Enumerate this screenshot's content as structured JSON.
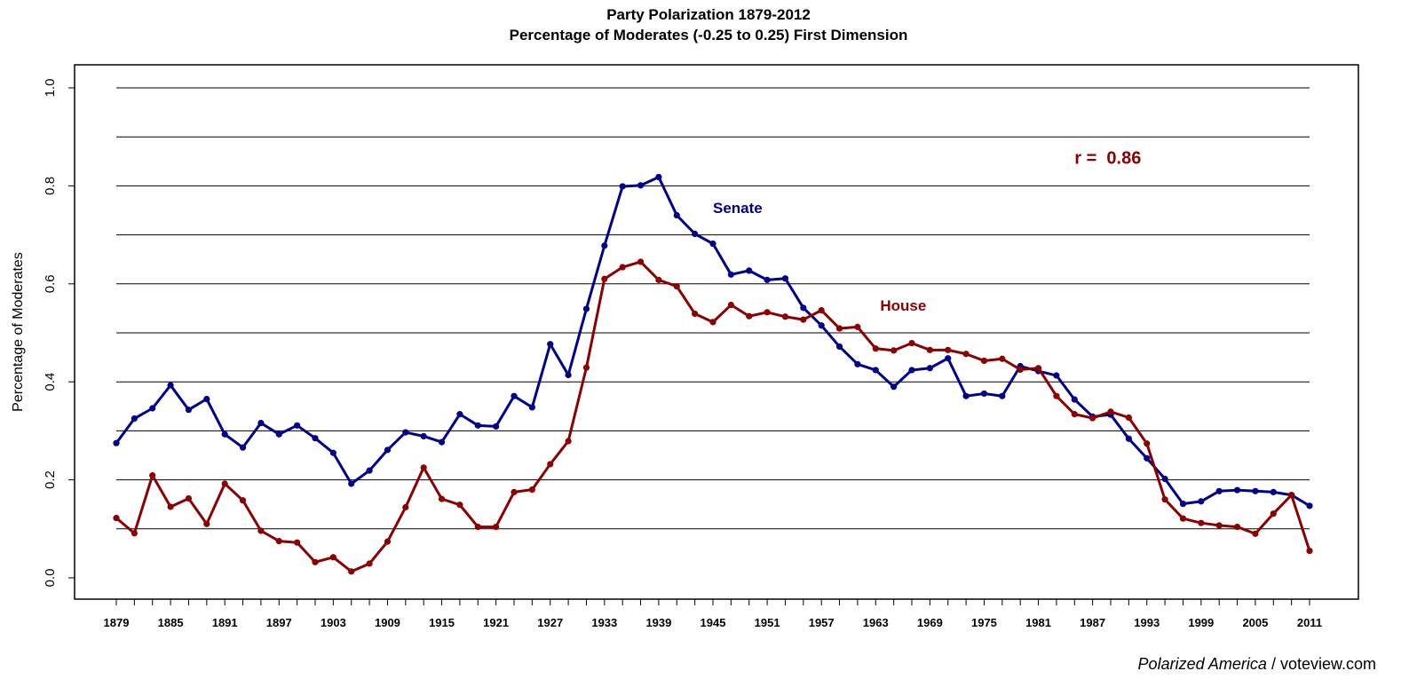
{
  "colors": {
    "senate": "#00008B",
    "house": "#8B0000",
    "grid": "#000000"
  },
  "chart_data": {
    "type": "line",
    "title": "Party Polarization 1879-2012",
    "subtitle": "Percentage of Moderates (-0.25 to 0.25) First Dimension",
    "xlabel": "",
    "ylabel": "Percentage of Moderates",
    "ylim": [
      0,
      1
    ],
    "xlim": [
      1879,
      2011
    ],
    "grid": true,
    "yticks": [
      "0.0",
      "0.2",
      "0.4",
      "0.6",
      "0.8",
      "1.0"
    ],
    "xticks": [
      "1879",
      "1885",
      "1891",
      "1897",
      "1903",
      "1909",
      "1915",
      "1921",
      "1927",
      "1933",
      "1939",
      "1945",
      "1951",
      "1957",
      "1963",
      "1969",
      "1975",
      "1981",
      "1987",
      "1993",
      "1999",
      "2005",
      "2011"
    ],
    "x": [
      1879,
      1881,
      1883,
      1885,
      1887,
      1889,
      1891,
      1893,
      1895,
      1897,
      1899,
      1901,
      1903,
      1905,
      1907,
      1909,
      1911,
      1913,
      1915,
      1917,
      1919,
      1921,
      1923,
      1925,
      1927,
      1929,
      1931,
      1933,
      1935,
      1937,
      1939,
      1941,
      1943,
      1945,
      1947,
      1949,
      1951,
      1953,
      1955,
      1957,
      1959,
      1961,
      1963,
      1965,
      1967,
      1969,
      1971,
      1973,
      1975,
      1977,
      1979,
      1981,
      1983,
      1985,
      1987,
      1989,
      1991,
      1993,
      1995,
      1997,
      1999,
      2001,
      2003,
      2005,
      2007,
      2009,
      2011
    ],
    "series": [
      {
        "name": "Senate",
        "values": [
          0.275,
          0.325,
          0.346,
          0.393,
          0.343,
          0.365,
          0.293,
          0.266,
          0.316,
          0.293,
          0.311,
          0.285,
          0.255,
          0.192,
          0.219,
          0.261,
          0.297,
          0.289,
          0.277,
          0.334,
          0.311,
          0.309,
          0.371,
          0.348,
          0.477,
          0.414,
          0.549,
          0.678,
          0.799,
          0.801,
          0.818,
          0.74,
          0.702,
          0.682,
          0.619,
          0.627,
          0.608,
          0.611,
          0.551,
          0.515,
          0.472,
          0.436,
          0.424,
          0.39,
          0.424,
          0.428,
          0.448,
          0.371,
          0.376,
          0.371,
          0.432,
          0.422,
          0.413,
          0.364,
          0.329,
          0.333,
          0.284,
          0.244,
          0.202,
          0.151,
          0.156,
          0.177,
          0.179,
          0.177,
          0.175,
          0.169,
          0.147
        ]
      },
      {
        "name": "House",
        "values": [
          0.122,
          0.091,
          0.209,
          0.145,
          0.162,
          0.11,
          0.192,
          0.158,
          0.096,
          0.075,
          0.072,
          0.032,
          0.042,
          0.013,
          0.029,
          0.074,
          0.144,
          0.225,
          0.161,
          0.149,
          0.104,
          0.104,
          0.175,
          0.18,
          0.232,
          0.279,
          0.429,
          0.61,
          0.634,
          0.645,
          0.608,
          0.595,
          0.539,
          0.522,
          0.557,
          0.534,
          0.542,
          0.533,
          0.527,
          0.546,
          0.509,
          0.512,
          0.468,
          0.464,
          0.479,
          0.465,
          0.465,
          0.457,
          0.443,
          0.447,
          0.425,
          0.428,
          0.371,
          0.334,
          0.326,
          0.339,
          0.327,
          0.274,
          0.16,
          0.121,
          0.112,
          0.107,
          0.104,
          0.09,
          0.131,
          0.169,
          0.055
        ]
      }
    ],
    "annotations": [
      {
        "text": "Senate",
        "series": "Senate",
        "x": 1945,
        "y": 0.745
      },
      {
        "text": "House",
        "series": "House",
        "x": 1963.5,
        "y": 0.545
      },
      {
        "text": "r =  0.86",
        "series": "House",
        "x": 1985,
        "y": 0.845
      }
    ]
  },
  "credit": {
    "source": "Polarized America",
    "separator": " / ",
    "site": "voteview.com"
  }
}
